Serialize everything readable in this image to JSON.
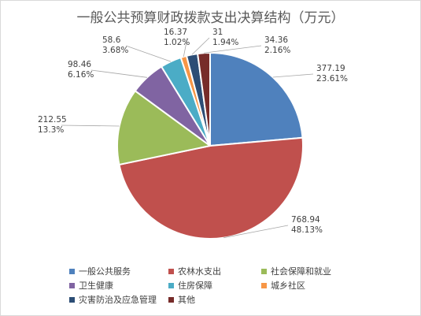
{
  "chart_data": {
    "type": "pie",
    "title": "一般公共预算财政拨款支出决算结构（万元）",
    "unit": "万元",
    "categories": [
      "一般公共服务",
      "农林水支出",
      "社会保障和就业",
      "卫生健康",
      "住房保障",
      "城乡社区",
      "灾害防治及应急管理",
      "其他"
    ],
    "values": [
      377.19,
      768.94,
      212.55,
      98.46,
      58.6,
      16.37,
      31,
      34.36
    ],
    "value_labels": [
      "377.19",
      "768.94",
      "212.55",
      "98.46",
      "58.6",
      "16.37",
      "31",
      "34.36"
    ],
    "percent_labels": [
      "23.61%",
      "48.13%",
      "13.3%",
      "6.16%",
      "3.68%",
      "1.02%",
      "1.94%",
      "2.16%"
    ],
    "colors": [
      "#4f81bd",
      "#c0504d",
      "#9bbb59",
      "#8064a2",
      "#4bacc6",
      "#f79646",
      "#2c4d75",
      "#772c2a"
    ],
    "legend_position": "bottom",
    "start_angle_deg": 0,
    "direction": "clockwise"
  }
}
